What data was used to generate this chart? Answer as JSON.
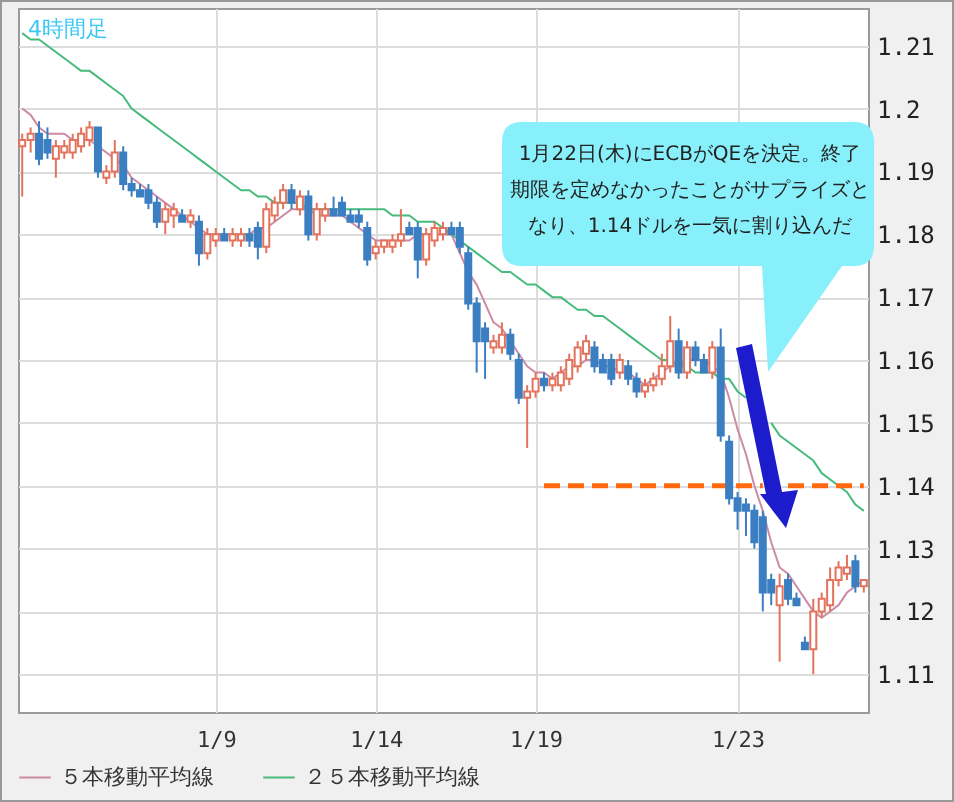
{
  "chart_data": {
    "type": "candlestick",
    "title": "4時間足",
    "categories": [
      null,
      null,
      null,
      null,
      null,
      null,
      null,
      null,
      null,
      null,
      null,
      null,
      null,
      null,
      null,
      null,
      null,
      null,
      null,
      null,
      null,
      null,
      null,
      "1/9",
      null,
      null,
      null,
      null,
      null,
      null,
      null,
      null,
      null,
      null,
      null,
      null,
      null,
      null,
      null,
      null,
      null,
      null,
      "1/14",
      null,
      null,
      null,
      null,
      null,
      null,
      null,
      null,
      null,
      null,
      null,
      null,
      null,
      null,
      null,
      null,
      null,
      null,
      "1/19",
      null,
      null,
      null,
      null,
      null,
      null,
      null,
      null,
      null,
      null,
      null,
      null,
      null,
      null,
      null,
      null,
      null,
      null,
      null,
      null,
      null,
      null,
      null,
      "1/23",
      null,
      null,
      null,
      null,
      null,
      null,
      null,
      null,
      null,
      null,
      null,
      null,
      null,
      null,
      null
    ],
    "ohlc": [
      [
        1.194,
        1.196,
        1.186,
        1.195
      ],
      [
        1.195,
        1.197,
        1.193,
        1.196
      ],
      [
        1.196,
        1.198,
        1.191,
        1.192
      ],
      [
        1.195,
        1.197,
        1.192,
        1.193
      ],
      [
        1.192,
        1.195,
        1.189,
        1.194
      ],
      [
        1.193,
        1.195,
        1.192,
        1.194
      ],
      [
        1.193,
        1.196,
        1.192,
        1.195
      ],
      [
        1.194,
        1.197,
        1.193,
        1.196
      ],
      [
        1.195,
        1.198,
        1.194,
        1.197
      ],
      [
        1.197,
        1.197,
        1.189,
        1.19
      ],
      [
        1.189,
        1.191,
        1.188,
        1.19
      ],
      [
        1.19,
        1.195,
        1.189,
        1.193
      ],
      [
        1.193,
        1.194,
        1.187,
        1.188
      ],
      [
        1.188,
        1.189,
        1.186,
        1.187
      ],
      [
        1.187,
        1.188,
        1.186,
        1.186
      ],
      [
        1.187,
        1.188,
        1.184,
        1.185
      ],
      [
        1.185,
        1.186,
        1.181,
        1.182
      ],
      [
        1.182,
        1.185,
        1.18,
        1.184
      ],
      [
        1.183,
        1.185,
        1.181,
        1.184
      ],
      [
        1.183,
        1.184,
        1.182,
        1.182
      ],
      [
        1.182,
        1.184,
        1.181,
        1.183
      ],
      [
        1.182,
        1.183,
        1.175,
        1.177
      ],
      [
        1.177,
        1.181,
        1.176,
        1.18
      ],
      [
        1.179,
        1.181,
        1.178,
        1.18
      ],
      [
        1.18,
        1.181,
        1.179,
        1.179
      ],
      [
        1.179,
        1.181,
        1.178,
        1.18
      ],
      [
        1.179,
        1.181,
        1.178,
        1.18
      ],
      [
        1.18,
        1.181,
        1.178,
        1.179
      ],
      [
        1.181,
        1.182,
        1.176,
        1.178
      ],
      [
        1.178,
        1.185,
        1.177,
        1.184
      ],
      [
        1.183,
        1.186,
        1.182,
        1.185
      ],
      [
        1.185,
        1.188,
        1.184,
        1.187
      ],
      [
        1.187,
        1.188,
        1.184,
        1.185
      ],
      [
        1.184,
        1.187,
        1.183,
        1.186
      ],
      [
        1.186,
        1.187,
        1.179,
        1.18
      ],
      [
        1.18,
        1.185,
        1.179,
        1.184
      ],
      [
        1.183,
        1.185,
        1.182,
        1.184
      ],
      [
        1.184,
        1.186,
        1.183,
        1.183
      ],
      [
        1.185,
        1.186,
        1.183,
        1.183
      ],
      [
        1.183,
        1.184,
        1.182,
        1.182
      ],
      [
        1.183,
        1.184,
        1.181,
        1.182
      ],
      [
        1.181,
        1.182,
        1.175,
        1.176
      ],
      [
        1.177,
        1.179,
        1.176,
        1.178
      ],
      [
        1.178,
        1.179,
        1.177,
        1.179
      ],
      [
        1.178,
        1.18,
        1.177,
        1.179
      ],
      [
        1.179,
        1.184,
        1.178,
        1.18
      ],
      [
        1.181,
        1.182,
        1.18,
        1.18
      ],
      [
        1.181,
        1.182,
        1.173,
        1.176
      ],
      [
        1.176,
        1.181,
        1.175,
        1.18
      ],
      [
        1.179,
        1.182,
        1.178,
        1.181
      ],
      [
        1.18,
        1.182,
        1.179,
        1.181
      ],
      [
        1.181,
        1.182,
        1.18,
        1.18
      ],
      [
        1.181,
        1.182,
        1.177,
        1.178
      ],
      [
        1.177,
        1.178,
        1.168,
        1.169
      ],
      [
        1.169,
        1.17,
        1.158,
        1.163
      ],
      [
        1.165,
        1.166,
        1.157,
        1.163
      ],
      [
        1.162,
        1.164,
        1.161,
        1.163
      ],
      [
        1.162,
        1.166,
        1.161,
        1.164
      ],
      [
        1.164,
        1.165,
        1.16,
        1.161
      ],
      [
        1.16,
        1.161,
        1.153,
        1.154
      ],
      [
        1.154,
        1.156,
        1.146,
        1.155
      ],
      [
        1.155,
        1.158,
        1.154,
        1.157
      ],
      [
        1.157,
        1.158,
        1.155,
        1.156
      ],
      [
        1.156,
        1.158,
        1.155,
        1.157
      ],
      [
        1.156,
        1.159,
        1.155,
        1.158
      ],
      [
        1.157,
        1.161,
        1.156,
        1.16
      ],
      [
        1.159,
        1.163,
        1.158,
        1.162
      ],
      [
        1.161,
        1.164,
        1.16,
        1.163
      ],
      [
        1.162,
        1.163,
        1.158,
        1.159
      ],
      [
        1.16,
        1.161,
        1.158,
        1.158
      ],
      [
        1.16,
        1.161,
        1.156,
        1.157
      ],
      [
        1.158,
        1.161,
        1.157,
        1.16
      ],
      [
        1.159,
        1.16,
        1.156,
        1.157
      ],
      [
        1.157,
        1.158,
        1.154,
        1.155
      ],
      [
        1.155,
        1.157,
        1.154,
        1.156
      ],
      [
        1.156,
        1.158,
        1.155,
        1.157
      ],
      [
        1.157,
        1.161,
        1.156,
        1.159
      ],
      [
        1.159,
        1.167,
        1.158,
        1.163
      ],
      [
        1.163,
        1.165,
        1.157,
        1.158
      ],
      [
        1.158,
        1.163,
        1.157,
        1.162
      ],
      [
        1.162,
        1.163,
        1.159,
        1.16
      ],
      [
        1.16,
        1.161,
        1.158,
        1.158
      ],
      [
        1.158,
        1.163,
        1.157,
        1.162
      ],
      [
        1.162,
        1.165,
        1.147,
        1.148
      ],
      [
        1.147,
        1.148,
        1.137,
        1.138
      ],
      [
        1.138,
        1.139,
        1.133,
        1.136
      ],
      [
        1.137,
        1.138,
        1.132,
        1.136
      ],
      [
        1.136,
        1.137,
        1.13,
        1.131
      ],
      [
        1.135,
        1.136,
        1.12,
        1.123
      ],
      [
        1.125,
        1.126,
        1.121,
        1.123
      ],
      [
        1.121,
        1.126,
        1.112,
        1.124
      ],
      [
        1.125,
        1.126,
        1.121,
        1.122
      ],
      [
        1.122,
        1.123,
        1.121,
        1.121
      ],
      [
        1.115,
        1.116,
        1.114,
        1.114
      ],
      [
        1.114,
        1.122,
        1.11,
        1.12
      ],
      [
        1.12,
        1.123,
        1.119,
        1.122
      ],
      [
        1.121,
        1.127,
        1.12,
        1.125
      ],
      [
        1.125,
        1.128,
        1.124,
        1.127
      ],
      [
        1.126,
        1.129,
        1.125,
        1.127
      ],
      [
        1.128,
        1.129,
        1.123,
        1.124
      ],
      [
        1.124,
        1.125,
        1.123,
        1.125
      ]
    ],
    "series": [
      {
        "type": "line",
        "name": "５本移動平均線",
        "color": "#cc8aa6",
        "values": [
          1.2,
          1.199,
          1.197,
          1.196,
          1.196,
          1.196,
          1.195,
          1.195,
          1.195,
          1.194,
          1.193,
          1.192,
          1.191,
          1.189,
          1.188,
          1.187,
          1.186,
          1.185,
          1.184,
          1.183,
          1.182,
          1.181,
          1.18,
          1.18,
          1.18,
          1.18,
          1.18,
          1.18,
          1.181,
          1.181,
          1.182,
          1.183,
          1.184,
          1.184,
          1.184,
          1.183,
          1.183,
          1.183,
          1.183,
          1.182,
          1.181,
          1.18,
          1.179,
          1.179,
          1.179,
          1.179,
          1.179,
          1.18,
          1.18,
          1.18,
          1.18,
          1.18,
          1.177,
          1.174,
          1.172,
          1.169,
          1.166,
          1.165,
          1.163,
          1.161,
          1.159,
          1.158,
          1.158,
          1.157,
          1.158,
          1.159,
          1.159,
          1.16,
          1.16,
          1.159,
          1.159,
          1.158,
          1.158,
          1.157,
          1.156,
          1.157,
          1.158,
          1.159,
          1.159,
          1.16,
          1.16,
          1.16,
          1.159,
          1.158,
          1.154,
          1.149,
          1.145,
          1.14,
          1.136,
          1.131,
          1.127,
          1.126,
          1.124,
          1.122,
          1.12,
          1.119,
          1.12,
          1.121,
          1.123,
          1.124,
          1.125
        ]
      },
      {
        "type": "line",
        "name": "２５本移動平均線",
        "color": "#46bb7c",
        "values": [
          1.212,
          1.211,
          1.211,
          1.21,
          1.209,
          1.208,
          1.207,
          1.206,
          1.206,
          1.205,
          1.204,
          1.203,
          1.202,
          1.2,
          1.199,
          1.198,
          1.197,
          1.196,
          1.195,
          1.194,
          1.193,
          1.192,
          1.191,
          1.19,
          1.189,
          1.188,
          1.187,
          1.187,
          1.186,
          1.186,
          1.185,
          1.185,
          1.185,
          1.185,
          1.184,
          1.184,
          1.184,
          1.184,
          1.184,
          1.184,
          1.184,
          1.184,
          1.184,
          1.184,
          1.183,
          1.183,
          1.183,
          1.182,
          1.182,
          1.182,
          1.181,
          1.18,
          1.179,
          1.178,
          1.177,
          1.176,
          1.175,
          1.174,
          1.174,
          1.173,
          1.172,
          1.172,
          1.171,
          1.17,
          1.17,
          1.169,
          1.168,
          1.168,
          1.167,
          1.167,
          1.166,
          1.165,
          1.164,
          1.163,
          1.162,
          1.161,
          1.16,
          1.16,
          1.159,
          1.159,
          1.158,
          1.158,
          1.158,
          1.157,
          1.157,
          1.155,
          1.154,
          null,
          null,
          1.15,
          1.148,
          1.147,
          1.146,
          1.145,
          1.144,
          1.142,
          1.141,
          1.14,
          1.139,
          1.137,
          1.136
        ]
      },
      {
        "type": "line",
        "color": "#ff6a10",
        "line_style": "dashed",
        "values": [
          null,
          null,
          null,
          null,
          null,
          null,
          null,
          null,
          null,
          null,
          null,
          null,
          null,
          null,
          null,
          null,
          null,
          null,
          null,
          null,
          null,
          null,
          null,
          null,
          null,
          null,
          null,
          null,
          null,
          null,
          null,
          null,
          null,
          null,
          null,
          null,
          null,
          null,
          null,
          null,
          null,
          null,
          null,
          null,
          null,
          null,
          null,
          null,
          null,
          null,
          null,
          null,
          null,
          null,
          null,
          null,
          null,
          null,
          null,
          null,
          null,
          null,
          1.14,
          1.14,
          1.14,
          1.14,
          1.14,
          1.14,
          1.14,
          1.14,
          1.14,
          1.14,
          1.14,
          1.14,
          1.14,
          1.14,
          1.14,
          1.14,
          1.14,
          1.14,
          1.14,
          1.14,
          1.14,
          1.14,
          1.14,
          1.14,
          1.14,
          1.14,
          1.14,
          null,
          null,
          1.14,
          1.14,
          1.14,
          1.14,
          1.14,
          1.14,
          1.14,
          1.14,
          1.14,
          1.14
        ]
      }
    ],
    "ylim": [
      1.104,
      1.216
    ],
    "yticks": [
      1.11,
      1.12,
      1.13,
      1.14,
      1.15,
      1.16,
      1.17,
      1.18,
      1.19,
      1.2,
      1.21
    ],
    "grid": true,
    "legend": "bottom",
    "annotations": [
      "1月22日(木)にECBがQEを決定。終了期限を定めなかったことがサプライズとなり、1.14ドルを一気に割り込んだ"
    ]
  }
}
